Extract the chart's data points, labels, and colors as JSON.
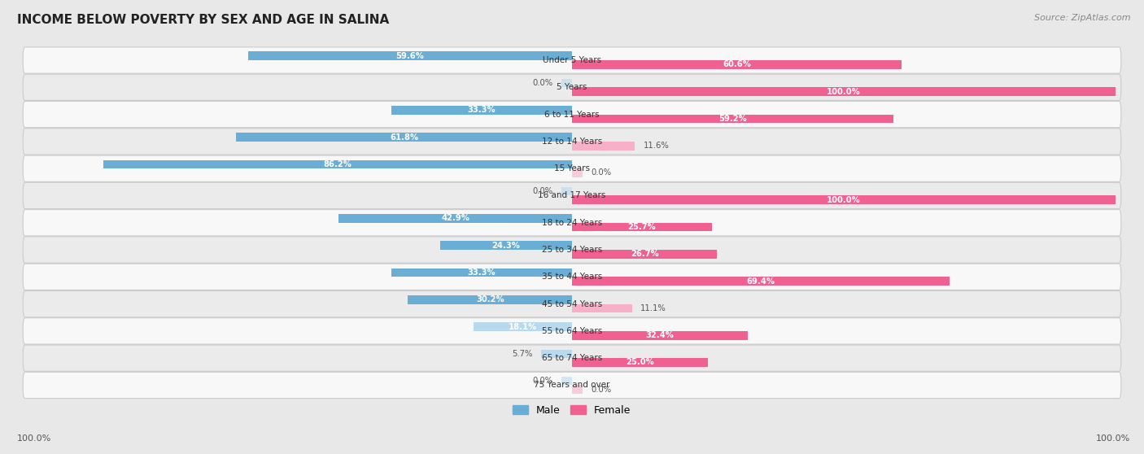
{
  "title": "INCOME BELOW POVERTY BY SEX AND AGE IN SALINA",
  "source": "Source: ZipAtlas.com",
  "categories": [
    "Under 5 Years",
    "5 Years",
    "6 to 11 Years",
    "12 to 14 Years",
    "15 Years",
    "16 and 17 Years",
    "18 to 24 Years",
    "25 to 34 Years",
    "35 to 44 Years",
    "45 to 54 Years",
    "55 to 64 Years",
    "65 to 74 Years",
    "75 Years and over"
  ],
  "male": [
    59.6,
    0.0,
    33.3,
    61.8,
    86.2,
    0.0,
    42.9,
    24.3,
    33.3,
    30.2,
    18.1,
    5.7,
    0.0
  ],
  "female": [
    60.6,
    100.0,
    59.2,
    11.6,
    0.0,
    100.0,
    25.7,
    26.7,
    69.4,
    11.1,
    32.4,
    25.0,
    0.0
  ],
  "male_color_dark": "#6aaed6",
  "male_color_light": "#b8d9ee",
  "female_color_dark": "#f06090",
  "female_color_light": "#f8afc8",
  "background_color": "#e8e8e8",
  "row_bg_color": "#f8f8f8",
  "row_alt_bg_color": "#ebebeb",
  "max_value": 100.0,
  "legend_male": "Male",
  "legend_female": "Female",
  "bottom_left_label": "100.0%",
  "bottom_right_label": "100.0%"
}
